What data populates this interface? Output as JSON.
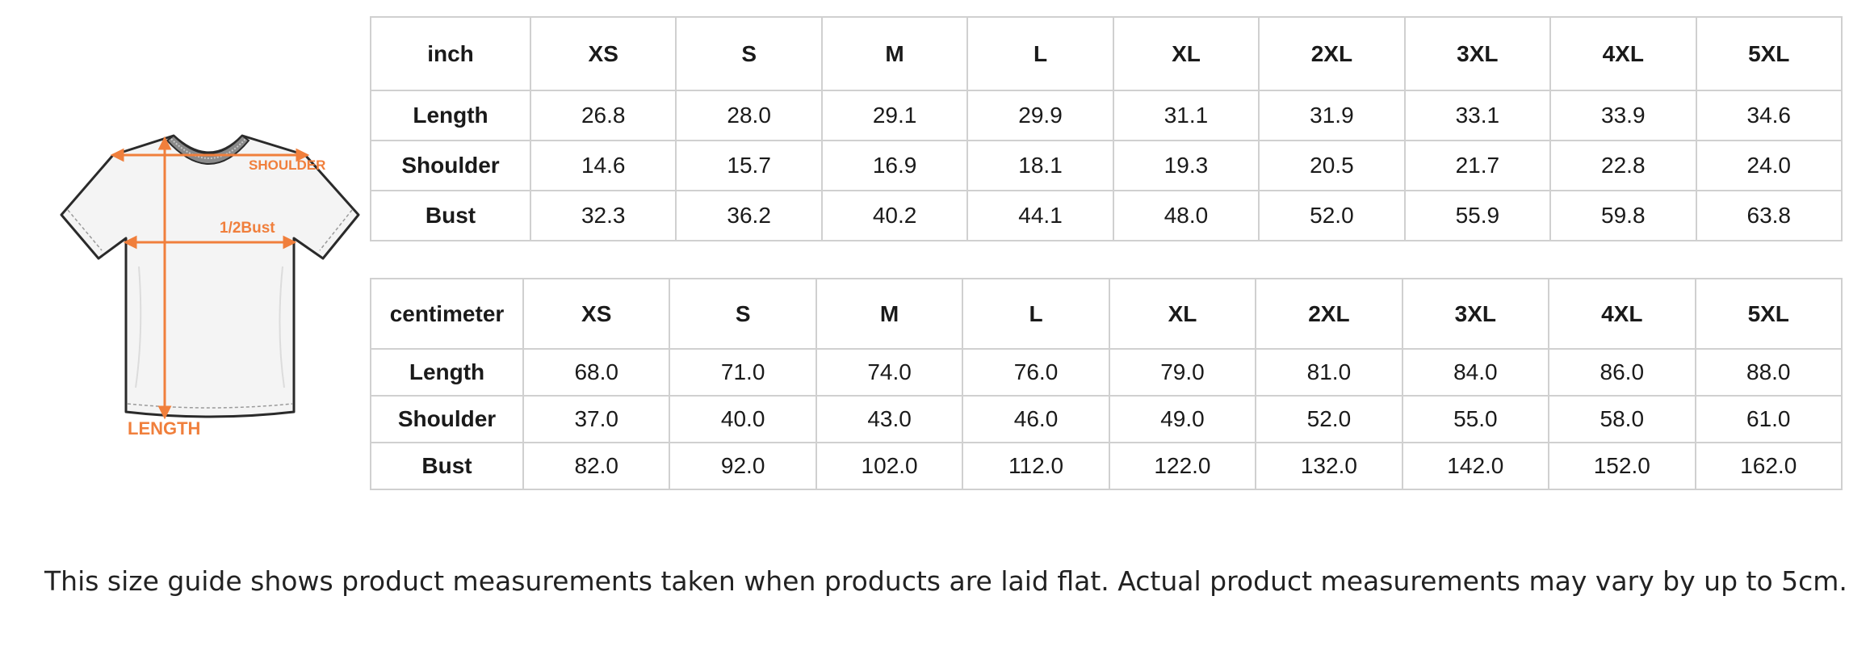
{
  "illustration": {
    "labels": {
      "shoulder": "SHOULDER",
      "half_bust": "1/2Bust",
      "length": "LENGTH"
    },
    "accent_color": "#f07f3c"
  },
  "inch_table": {
    "unit_label": "inch",
    "sizes": [
      "XS",
      "S",
      "M",
      "L",
      "XL",
      "2XL",
      "3XL",
      "4XL",
      "5XL"
    ],
    "rows": [
      {
        "label": "Length",
        "values": [
          "26.8",
          "28.0",
          "29.1",
          "29.9",
          "31.1",
          "31.9",
          "33.1",
          "33.9",
          "34.6"
        ]
      },
      {
        "label": "Shoulder",
        "values": [
          "14.6",
          "15.7",
          "16.9",
          "18.1",
          "19.3",
          "20.5",
          "21.7",
          "22.8",
          "24.0"
        ]
      },
      {
        "label": "Bust",
        "values": [
          "32.3",
          "36.2",
          "40.2",
          "44.1",
          "48.0",
          "52.0",
          "55.9",
          "59.8",
          "63.8"
        ]
      }
    ]
  },
  "cm_table": {
    "unit_label": "centimeter",
    "sizes": [
      "XS",
      "S",
      "M",
      "L",
      "XL",
      "2XL",
      "3XL",
      "4XL",
      "5XL"
    ],
    "rows": [
      {
        "label": "Length",
        "values": [
          "68.0",
          "71.0",
          "74.0",
          "76.0",
          "79.0",
          "81.0",
          "84.0",
          "86.0",
          "88.0"
        ]
      },
      {
        "label": "Shoulder",
        "values": [
          "37.0",
          "40.0",
          "43.0",
          "46.0",
          "49.0",
          "52.0",
          "55.0",
          "58.0",
          "61.0"
        ]
      },
      {
        "label": "Bust",
        "values": [
          "82.0",
          "92.0",
          "102.0",
          "112.0",
          "122.0",
          "132.0",
          "142.0",
          "152.0",
          "162.0"
        ]
      }
    ]
  },
  "footnote": "This size guide shows product measurements taken when products are laid flat. Actual product measurements may vary by up to 5cm."
}
